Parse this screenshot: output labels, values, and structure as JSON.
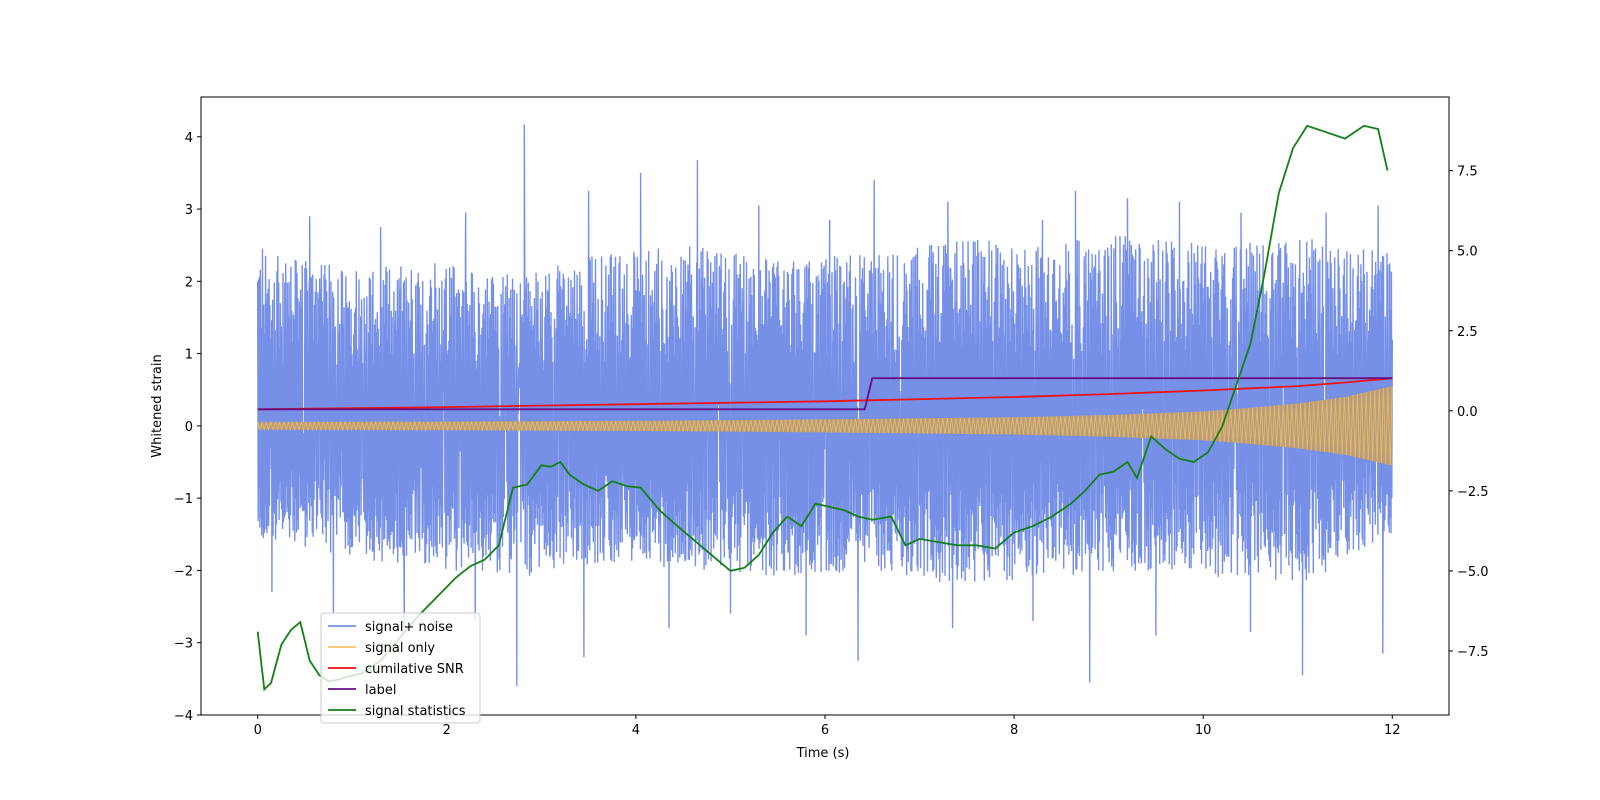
{
  "chart_data": {
    "type": "line",
    "title": "",
    "xlabel": "Time (s)",
    "ylabel": "Whitened strain",
    "y2label": "",
    "xlim": [
      -0.6,
      12.6
    ],
    "ylim": [
      -4,
      4.55
    ],
    "y2lim": [
      -9.5,
      9.8
    ],
    "x_ticks": [
      "0",
      "2",
      "4",
      "6",
      "8",
      "10",
      "12"
    ],
    "y_ticks": [
      "−4",
      "−3",
      "−2",
      "−1",
      "0",
      "1",
      "2",
      "3",
      "4"
    ],
    "y2_ticks": [
      "−7.5",
      "−5.0",
      "−2.5",
      "0.0",
      "2.5",
      "5.0",
      "7.5"
    ],
    "grid": false,
    "legend_position": "lower-left",
    "legend": [
      {
        "label": "signal+ noise",
        "color": "#7690e8"
      },
      {
        "label": "signal only",
        "color": "#f5c36a"
      },
      {
        "label": "cumilative SNR",
        "color": "#ee1111"
      },
      {
        "label": "label",
        "color": "#6a0d83"
      },
      {
        "label": "signal statistics",
        "color": "#138013"
      }
    ],
    "colors": {
      "noise": "#7690e8",
      "signal": "#f5c36a",
      "signal_fill": "#bd9e73",
      "snr": "#ee1111",
      "label": "#6a0d83",
      "stats": "#138013"
    },
    "series": [
      {
        "name": "signal+ noise",
        "axis": "left",
        "x_range": [
          0,
          12
        ],
        "envelope_upper": [
          2.4,
          2.2,
          2.3,
          2.1,
          2.4,
          2.5,
          2.3,
          2.4,
          2.6,
          2.5,
          2.7,
          2.5,
          2.6,
          2.4
        ],
        "envelope_lower": [
          -1.6,
          -1.8,
          -2.0,
          -2.1,
          -1.9,
          -2.0,
          -2.1,
          -2.0,
          -2.2,
          -2.1,
          -2.0,
          -2.1,
          -2.2,
          -1.5
        ],
        "peaks_x": [
          0.05,
          0.55,
          1.3,
          2.2,
          2.82,
          3.5,
          4.05,
          4.65,
          5.3,
          6.05,
          6.52,
          7.3,
          8.3,
          8.65,
          9.2,
          9.75,
          10.4,
          11.3,
          11.85
        ],
        "peaks_y": [
          2.45,
          2.9,
          2.75,
          2.95,
          4.17,
          3.25,
          3.5,
          3.68,
          3.05,
          2.85,
          3.4,
          3.1,
          2.85,
          3.25,
          3.15,
          3.1,
          2.95,
          2.95,
          3.05
        ],
        "troughs_x": [
          0.15,
          0.8,
          1.55,
          2.3,
          2.74,
          3.45,
          4.35,
          5.0,
          5.8,
          6.35,
          7.35,
          8.2,
          8.8,
          9.5,
          10.5,
          11.05,
          11.9
        ],
        "troughs_y": [
          -2.3,
          -2.6,
          -2.8,
          -2.7,
          -3.6,
          -3.2,
          -2.8,
          -2.6,
          -2.9,
          -3.25,
          -2.8,
          -2.7,
          -3.55,
          -2.9,
          -2.85,
          -3.45,
          -3.15
        ]
      },
      {
        "name": "signal only",
        "axis": "left",
        "x_range": [
          0,
          12
        ],
        "amplitude_x": [
          0,
          2,
          4,
          6,
          8,
          9,
          10,
          10.5,
          11,
          11.5,
          12
        ],
        "amplitude": [
          0.05,
          0.06,
          0.07,
          0.09,
          0.12,
          0.15,
          0.2,
          0.25,
          0.31,
          0.4,
          0.55
        ]
      },
      {
        "name": "cumilative SNR",
        "axis": "left",
        "x": [
          0,
          2,
          4,
          6,
          8,
          9,
          10,
          10.5,
          11,
          11.5,
          12
        ],
        "y": [
          0.23,
          0.26,
          0.3,
          0.34,
          0.4,
          0.44,
          0.49,
          0.52,
          0.55,
          0.6,
          0.66
        ]
      },
      {
        "name": "label",
        "axis": "left",
        "x": [
          0,
          6.42,
          6.5,
          12
        ],
        "y": [
          0.23,
          0.23,
          0.66,
          0.66
        ]
      },
      {
        "name": "signal statistics",
        "axis": "right",
        "x": [
          0,
          0.07,
          0.14,
          0.25,
          0.35,
          0.45,
          0.55,
          0.65,
          0.75,
          0.85,
          0.95,
          1.1,
          1.3,
          1.5,
          1.7,
          1.9,
          2.1,
          2.25,
          2.4,
          2.55,
          2.7,
          2.85,
          3.0,
          3.1,
          3.2,
          3.3,
          3.45,
          3.6,
          3.75,
          3.9,
          4.05,
          4.25,
          4.4,
          4.6,
          4.8,
          5.0,
          5.15,
          5.3,
          5.45,
          5.6,
          5.75,
          5.9,
          6.05,
          6.2,
          6.35,
          6.5,
          6.7,
          6.85,
          7.0,
          7.2,
          7.4,
          7.6,
          7.8,
          8.0,
          8.2,
          8.4,
          8.6,
          8.75,
          8.9,
          9.05,
          9.2,
          9.3,
          9.45,
          9.6,
          9.75,
          9.9,
          10.05,
          10.2,
          10.35,
          10.5,
          10.65,
          10.8,
          10.95,
          11.1,
          11.3,
          11.5,
          11.7,
          11.85,
          11.95
        ],
        "y": [
          -6.9,
          -8.7,
          -8.5,
          -7.3,
          -6.85,
          -6.6,
          -7.8,
          -8.25,
          -8.45,
          -8.4,
          -8.3,
          -8.2,
          -7.8,
          -7.1,
          -6.4,
          -5.8,
          -5.2,
          -4.85,
          -4.65,
          -4.2,
          -2.4,
          -2.3,
          -1.7,
          -1.75,
          -1.6,
          -2.0,
          -2.3,
          -2.5,
          -2.2,
          -2.35,
          -2.4,
          -3.1,
          -3.5,
          -4.0,
          -4.5,
          -5.0,
          -4.9,
          -4.5,
          -3.8,
          -3.3,
          -3.6,
          -2.9,
          -3.0,
          -3.1,
          -3.3,
          -3.4,
          -3.3,
          -4.2,
          -4.0,
          -4.1,
          -4.2,
          -4.2,
          -4.3,
          -3.8,
          -3.6,
          -3.3,
          -2.9,
          -2.5,
          -2.0,
          -1.9,
          -1.6,
          -2.1,
          -0.8,
          -1.2,
          -1.5,
          -1.6,
          -1.3,
          -0.5,
          0.8,
          2.1,
          4.3,
          6.8,
          8.2,
          8.9,
          8.7,
          8.5,
          8.9,
          8.8,
          7.5
        ]
      }
    ]
  }
}
